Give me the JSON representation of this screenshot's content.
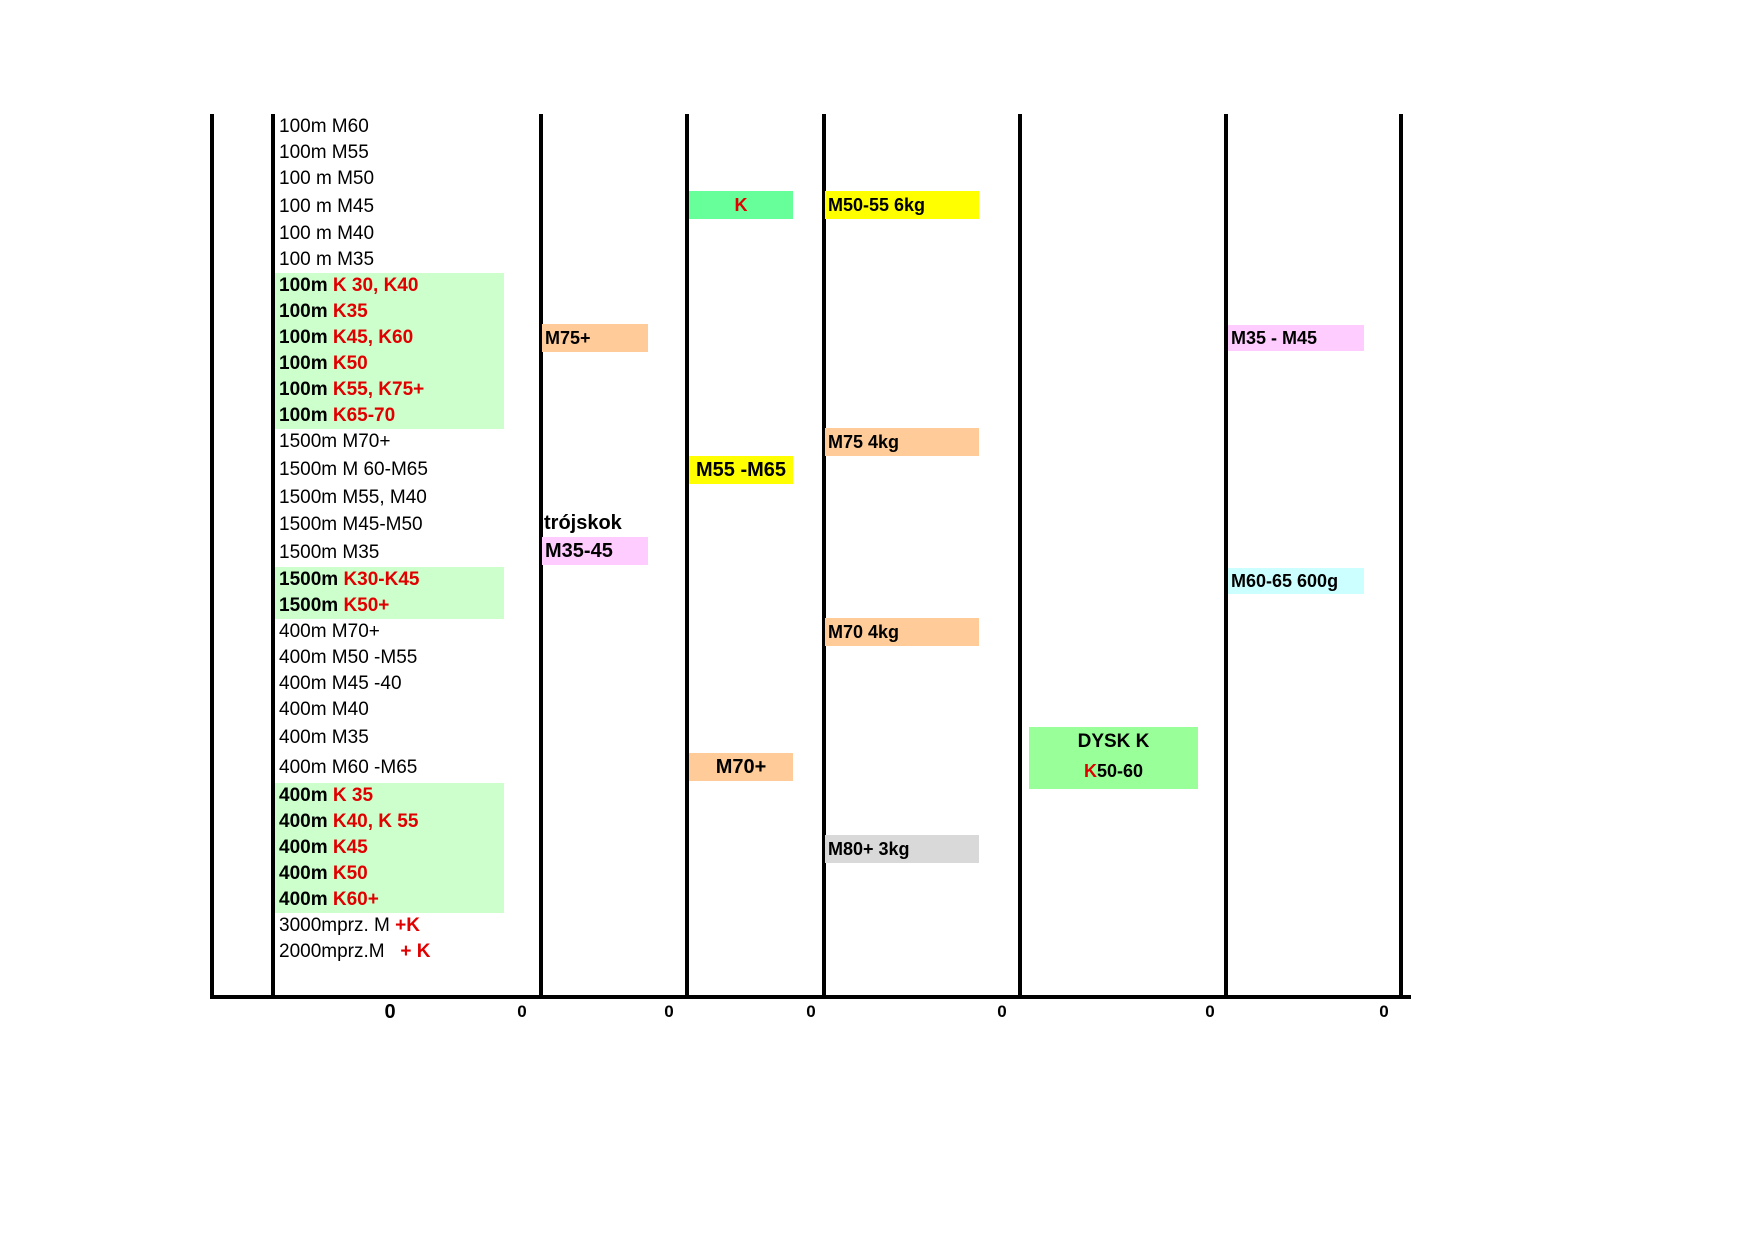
{
  "events": [
    {
      "parts": [
        {
          "text": "100m M60"
        }
      ]
    },
    {
      "parts": [
        {
          "text": "100m M55"
        }
      ]
    },
    {
      "parts": [
        {
          "text": "100 m M50"
        }
      ]
    },
    {
      "parts": [
        {
          "text": "100 m M45"
        }
      ]
    },
    {
      "parts": [
        {
          "text": "100 m M40"
        }
      ]
    },
    {
      "parts": [
        {
          "text": "100 m M35"
        }
      ]
    },
    {
      "bold": true,
      "parts": [
        {
          "text": "100m "
        },
        {
          "text": "K 30, K40",
          "red": true
        }
      ]
    },
    {
      "bold": true,
      "parts": [
        {
          "text": "100m "
        },
        {
          "text": "K35",
          "red": true
        }
      ]
    },
    {
      "bold": true,
      "parts": [
        {
          "text": "100m "
        },
        {
          "text": "K45, K60",
          "red": true
        }
      ]
    },
    {
      "bold": true,
      "parts": [
        {
          "text": "100m "
        },
        {
          "text": "K50",
          "red": true
        }
      ]
    },
    {
      "bold": true,
      "parts": [
        {
          "text": "100m "
        },
        {
          "text": "K55, K75+",
          "red": true
        }
      ]
    },
    {
      "bold": true,
      "parts": [
        {
          "text": "100m "
        },
        {
          "text": "K65-70",
          "red": true
        }
      ]
    },
    {
      "parts": [
        {
          "text": "1500m M70+"
        }
      ]
    },
    {
      "parts": [
        {
          "text": "1500m M 60-M65"
        }
      ]
    },
    {
      "parts": [
        {
          "text": "1500m M55, M40"
        }
      ]
    },
    {
      "parts": [
        {
          "text": "1500m M45-M50"
        }
      ]
    },
    {
      "parts": [
        {
          "text": "1500m M35"
        }
      ]
    },
    {
      "bold": true,
      "parts": [
        {
          "text": "1500m "
        },
        {
          "text": "K30-K45",
          "red": true
        }
      ]
    },
    {
      "bold": true,
      "parts": [
        {
          "text": "1500m "
        },
        {
          "text": "K50+",
          "red": true
        }
      ]
    },
    {
      "parts": [
        {
          "text": "400m M70+"
        }
      ]
    },
    {
      "parts": [
        {
          "text": "400m M50 -M55"
        }
      ]
    },
    {
      "parts": [
        {
          "text": "400m M45 -40"
        }
      ]
    },
    {
      "parts": [
        {
          "text": "400m M40"
        }
      ]
    },
    {
      "parts": [
        {
          "text": "400m M35"
        }
      ]
    },
    {
      "parts": [
        {
          "text": "400m M60 -M65"
        }
      ]
    },
    {
      "bold": true,
      "parts": [
        {
          "text": "400m "
        },
        {
          "text": "K 35",
          "red": true
        }
      ]
    },
    {
      "bold": true,
      "parts": [
        {
          "text": "400m "
        },
        {
          "text": "K40, K 55",
          "red": true
        }
      ]
    },
    {
      "bold": true,
      "parts": [
        {
          "text": "400m "
        },
        {
          "text": "K45",
          "red": true
        }
      ]
    },
    {
      "bold": true,
      "parts": [
        {
          "text": "400m "
        },
        {
          "text": "K50",
          "red": true
        }
      ]
    },
    {
      "bold": true,
      "parts": [
        {
          "text": "400m "
        },
        {
          "text": "K60+",
          "red": true
        }
      ]
    },
    {
      "parts": [
        {
          "text": "3000mprz. M "
        },
        {
          "text": "+K",
          "red": true,
          "bold": true
        }
      ]
    },
    {
      "parts": [
        {
          "text": "2000mprz.M  "
        },
        {
          "text": " + K",
          "red": true,
          "bold": true
        }
      ]
    }
  ],
  "col2": {
    "m75": "M75+",
    "trojskok_label": "trójskok",
    "m35_45": "M35-45"
  },
  "col3": {
    "k": "K",
    "m55_m65": "M55 -M65",
    "m70": "M70+"
  },
  "col4": {
    "m50_55": "M50-55 6kg",
    "m75": "M75 4kg",
    "m70": "M70 4kg",
    "m80": "M80+ 3kg"
  },
  "col5": {
    "dysk_title": "DYSK K",
    "dysk_k": "K",
    "dysk_rest": "50-60"
  },
  "col6": {
    "m35_m45": "M35 - M45",
    "m60_65": "M60-65 600g"
  },
  "totals": [
    "0",
    "0",
    "0",
    "0",
    "0",
    "0",
    "0"
  ],
  "colors": {
    "women_band": "#ccffcc",
    "red_text": "#e00000",
    "orange": "#ffcc99",
    "yellow": "#ffff00",
    "pink": "#ffccff",
    "mint": "#66ff99",
    "green": "#99ff99",
    "cyan": "#ccffff",
    "grey": "#d9d9d9"
  }
}
